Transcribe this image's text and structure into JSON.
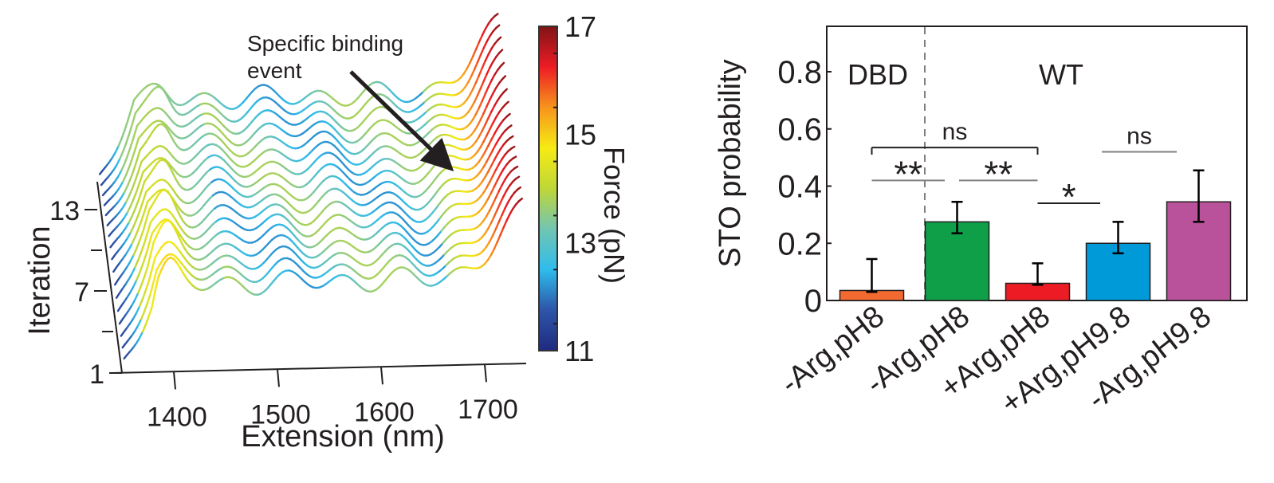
{
  "chart_data": [
    {
      "type": "line",
      "subtype": "waterfall-3d",
      "title": "",
      "xlabel": "Extension (nm)",
      "ylabel": "Iteration",
      "xlim": [
        1350,
        1740
      ],
      "x_ticks": [
        1400,
        1500,
        1600,
        1700
      ],
      "y_ticks": [
        "1",
        "7",
        "13"
      ],
      "iterations": 17,
      "colorbar": {
        "label": "Force (pN)",
        "range": [
          11,
          17
        ],
        "ticks": [
          "11",
          "13",
          "15",
          "17"
        ],
        "colormap": "jet",
        "stops": [
          "#1f2a80",
          "#2d55a8",
          "#2fbcec",
          "#72c5b2",
          "#bfd737",
          "#f6eb14",
          "#f7941d",
          "#ed1c24",
          "#7f1416"
        ]
      },
      "annotation": {
        "text_line1": "Specific binding",
        "text_line2": "event"
      }
    },
    {
      "type": "bar",
      "title": "",
      "xlabel": "",
      "ylabel": "STO probability",
      "ylim": [
        0,
        0.95
      ],
      "y_ticks": [
        "0",
        "0.2",
        "0.4",
        "0.6",
        "0.8"
      ],
      "group_labels": [
        "DBD",
        "WT"
      ],
      "categories": [
        "-Arg,pH8",
        "-Arg,pH8",
        "+Arg,pH8",
        "+Arg,pH9.8",
        "-Arg,pH9.8"
      ],
      "values": [
        0.035,
        0.275,
        0.06,
        0.2,
        0.345
      ],
      "err_low": [
        0.03,
        0.235,
        0.055,
        0.165,
        0.275
      ],
      "err_high": [
        0.145,
        0.345,
        0.13,
        0.275,
        0.455
      ],
      "colors": [
        "#f26a30",
        "#0e9f48",
        "#ed1c24",
        "#009ad9",
        "#b9529b"
      ],
      "significance": [
        {
          "from": 0,
          "to": 2,
          "label": "ns",
          "level": 0.535,
          "bracket": true
        },
        {
          "from": 0,
          "to": 1,
          "label": "**",
          "level": 0.42,
          "bracket": false
        },
        {
          "from": 1,
          "to": 2,
          "label": "**",
          "level": 0.42,
          "bracket": false
        },
        {
          "from": 2,
          "to": 3,
          "label": "*",
          "level": 0.34,
          "bracket": false
        },
        {
          "from": 3,
          "to": 4,
          "label": "ns",
          "level": 0.52,
          "bracket": false
        }
      ]
    }
  ]
}
